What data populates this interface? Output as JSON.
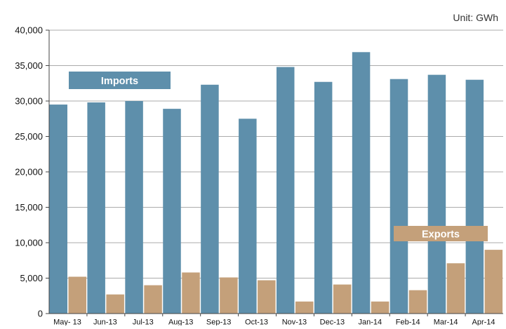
{
  "chart_data": {
    "type": "bar",
    "unit_label": "Unit: GWh",
    "categories": [
      "May- 13",
      "Jun-13",
      "Jul-13",
      "Aug-13",
      "Sep-13",
      "Oct-13",
      "Nov-13",
      "Dec-13",
      "Jan-14",
      "Feb-14",
      "Mar-14",
      "Apr-14"
    ],
    "series": [
      {
        "name": "Imports",
        "color": "#5e8fab",
        "values": [
          29500,
          29800,
          30000,
          28900,
          32300,
          27500,
          34800,
          32700,
          36900,
          33100,
          33700,
          33000
        ]
      },
      {
        "name": "Exports",
        "color": "#c4a07a",
        "values": [
          5200,
          2700,
          4000,
          5800,
          5100,
          4700,
          1700,
          4100,
          1700,
          3300,
          7100,
          9000
        ]
      }
    ],
    "ylim": [
      0,
      40000
    ],
    "yticks": [
      "0",
      "5,000",
      "10,000",
      "15,000",
      "20,000",
      "25,000",
      "30,000",
      "35,000",
      "40,000"
    ],
    "grid": true,
    "legend": "inline labels"
  }
}
